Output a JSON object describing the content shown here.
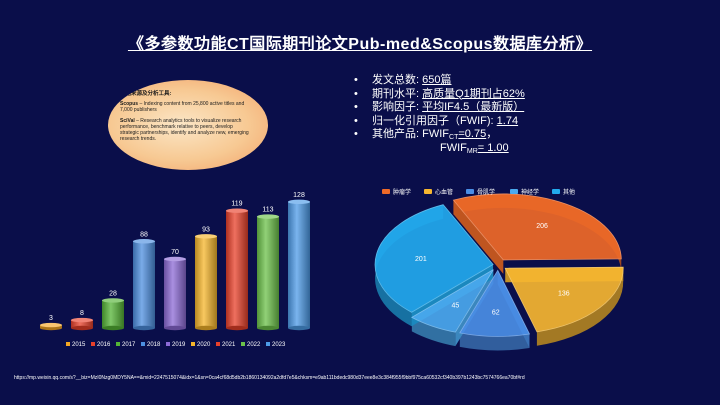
{
  "title": "《多参数功能CT国际期刊论文Pub-med&Scopus数据库分析》",
  "info_box": {
    "heading": "数据来源及分析工具:",
    "scopus_name": "Scopus",
    "scopus_text": " – Indexing content from 25,800 active titles and 7,000 publishers",
    "scival_name": "SciVal",
    "scival_text": " – Research analytics tools to visualize research performance, benchmark relative to peers, develop strategic partnerships, identify and analyze new, emerging research trends."
  },
  "bullets": {
    "b1_label": "发文总数: ",
    "b1_value": "650篇",
    "b2_label": "期刊水平: ",
    "b2_value": "高质量Q1期刊占62%",
    "b3_label": "影响因子: ",
    "b3_value": "平均IF4.5（最新版）",
    "b4_label": "归一化引用因子（FWIF): ",
    "b4_value": "1.74",
    "b5_label": "其他产品: ",
    "b5_fw": "FWIF",
    "b5_sub": "CT",
    "b5_value": "=0.75",
    "b5_tail": "，",
    "b6_fw": "FWIF",
    "b6_sub": "MR",
    "b6_value": "= 1.00",
    "bullet_glyph": "•"
  },
  "chart_data": [
    {
      "type": "bar",
      "categories": [
        "2015",
        "2016",
        "2017",
        "2018",
        "2019",
        "2020",
        "2021",
        "2022",
        "2023"
      ],
      "values": [
        3,
        8,
        28,
        88,
        70,
        93,
        119,
        113,
        128
      ],
      "colors": [
        "#f5a623",
        "#e8402a",
        "#54b435",
        "#4d8fe0",
        "#8c6ad6",
        "#f6b52b",
        "#e8402a",
        "#6cc24a",
        "#4d9be8"
      ],
      "ylim": [
        0,
        140
      ],
      "legend_position": "bottom",
      "grid": false
    },
    {
      "type": "pie",
      "categories": [
        "肿瘤学",
        "心血管",
        "骨肌学",
        "神经学",
        "其他"
      ],
      "values": [
        206,
        136,
        62,
        45,
        201
      ],
      "colors": [
        "#ef6a28",
        "#f6b630",
        "#4a8ee6",
        "#4aa9ee",
        "#22aaee"
      ],
      "legend_position": "top"
    }
  ],
  "footer_url": "https://mp.weixin.qq.com/s?__biz=MzI0Nzg0MDY5NA==&mid=2247515074&idx=1&sn=0ca4cf68d5db2b1860134092a2dfd7e5&chksm=e9ab111bdedc980d37eee8e3c384f955f9bbf975ca60532cf340b397b1243bc7574766ea70bf#rd"
}
